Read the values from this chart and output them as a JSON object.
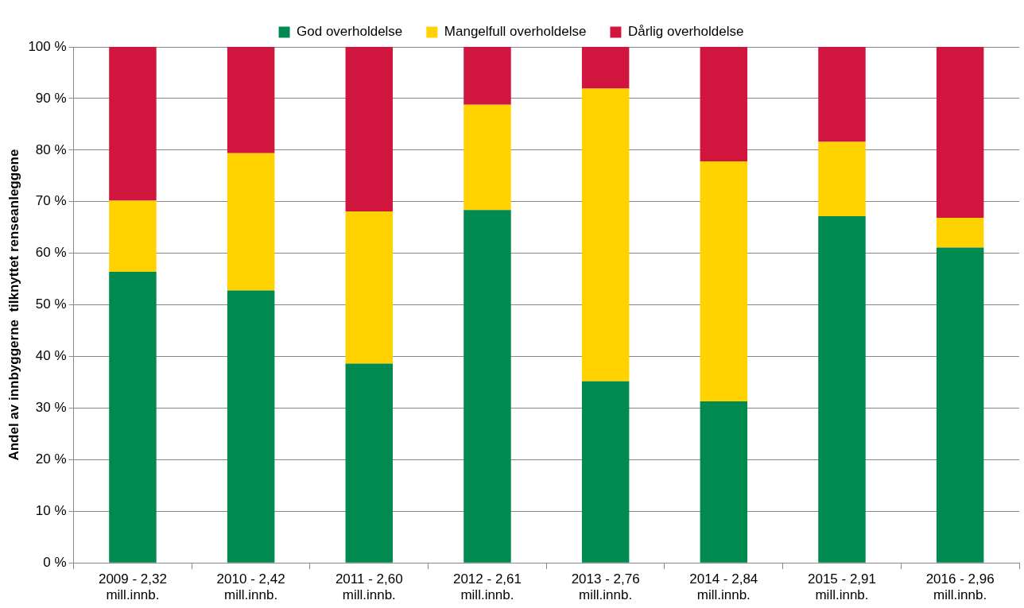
{
  "chart_data": {
    "type": "bar",
    "stacked": true,
    "ylabel": "Andel av innbyggerne  tilknyttet renseanleggene",
    "categories": [
      "2009 - 2,32\nmill.innb.",
      "2010 - 2,42\nmill.innb.",
      "2011 - 2,60\nmill.innb.",
      "2012 - 2,61\nmill.innb.",
      "2013 - 2,76\nmill.innb.",
      "2014 - 2,84\nmill.innb.",
      "2015 - 2,91\nmill.innb.",
      "2016 - 2,96\nmill.innb."
    ],
    "series": [
      {
        "name": "God overholdelse",
        "color": "#008a4f",
        "values": [
          56.4,
          52.8,
          38.6,
          68.4,
          35.2,
          31.3,
          67.2,
          61.1
        ]
      },
      {
        "name": "Mangelfull overholdelse",
        "color": "#ffd200",
        "values": [
          13.8,
          26.6,
          29.5,
          20.4,
          56.7,
          46.5,
          14.4,
          5.8
        ]
      },
      {
        "name": "Dårlig overholdelse",
        "color": "#d0153f",
        "values": [
          29.8,
          20.6,
          31.9,
          11.2,
          8.1,
          22.2,
          18.4,
          33.1
        ]
      }
    ],
    "ylim": [
      0,
      100
    ],
    "yticks": [
      {
        "value": 0,
        "label": "0 %"
      },
      {
        "value": 10,
        "label": "10 %"
      },
      {
        "value": 20,
        "label": "20 %"
      },
      {
        "value": 30,
        "label": "30 %"
      },
      {
        "value": 40,
        "label": "40 %"
      },
      {
        "value": 50,
        "label": "50 %"
      },
      {
        "value": 60,
        "label": "60 %"
      },
      {
        "value": 70,
        "label": "70 %"
      },
      {
        "value": 80,
        "label": "80 %"
      },
      {
        "value": 90,
        "label": "90 %"
      },
      {
        "value": 100,
        "label": "100 %"
      }
    ],
    "grid": "y",
    "legend": "top"
  }
}
